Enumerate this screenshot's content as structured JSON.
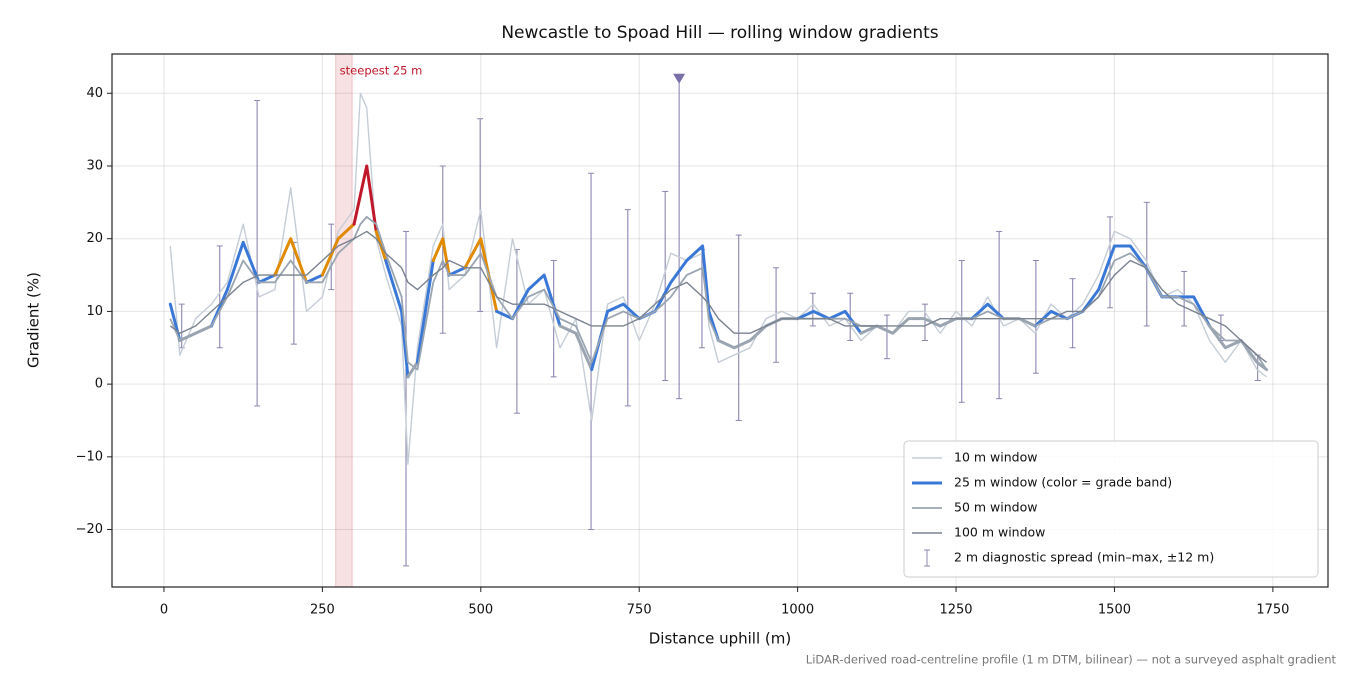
{
  "chart_data": {
    "type": "line",
    "title": "Newcastle to Spoad Hill — rolling window gradients",
    "xlabel": "Distance uphill (m)",
    "ylabel": "Gradient (%)",
    "footnote": "LiDAR-derived road-centreline profile (1 m DTM, bilinear) — not a surveyed asphalt gradient",
    "xlim": [
      -82,
      1837
    ],
    "ylim": [
      -27.9,
      45.4
    ],
    "xticks": [
      0,
      250,
      500,
      750,
      1000,
      1250,
      1500,
      1750
    ],
    "yticks": [
      {
        "value": -20,
        "label": "−20"
      },
      {
        "value": -10,
        "label": "−10"
      },
      0,
      10,
      20,
      30,
      40
    ],
    "grid": true,
    "legend": "lower right",
    "x": [
      10,
      25,
      50,
      75,
      100,
      125,
      150,
      175,
      200,
      225,
      250,
      275,
      300,
      310,
      320,
      335,
      350,
      375,
      385,
      400,
      425,
      440,
      450,
      475,
      500,
      525,
      550,
      575,
      600,
      625,
      650,
      675,
      700,
      725,
      750,
      775,
      800,
      825,
      850,
      860,
      875,
      900,
      925,
      950,
      975,
      1000,
      1025,
      1050,
      1075,
      1100,
      1125,
      1150,
      1175,
      1200,
      1225,
      1250,
      1275,
      1300,
      1325,
      1350,
      1375,
      1400,
      1425,
      1450,
      1475,
      1500,
      1525,
      1550,
      1575,
      1600,
      1625,
      1650,
      1675,
      1700,
      1725,
      1740
    ],
    "grade_bands": [
      {
        "min": -100,
        "max": 10,
        "color": "#9aa5b1"
      },
      {
        "min": 10,
        "max": 20,
        "color": "#3a78d8"
      },
      {
        "min": 20,
        "max": 25,
        "color": "#e08a00"
      },
      {
        "min": 25,
        "max": 100,
        "color": "#c0182a"
      }
    ],
    "series": [
      {
        "name": "10 m window",
        "color": "#c5cdd6",
        "values": [
          19,
          4,
          9,
          11,
          14,
          22,
          12,
          13,
          27,
          10,
          12,
          21,
          24,
          40,
          38,
          20,
          15,
          8,
          -11,
          5,
          19,
          22,
          13,
          15,
          24,
          5,
          20,
          11,
          13,
          5,
          9,
          -5,
          11,
          12,
          6,
          11,
          18,
          17,
          18,
          8,
          3,
          4,
          5,
          9,
          10,
          9,
          11,
          8,
          9,
          6,
          8,
          7,
          10,
          10,
          7,
          10,
          8,
          12,
          8,
          9,
          7,
          11,
          9,
          11,
          15,
          21,
          20,
          17,
          12,
          13,
          11,
          6,
          3,
          6,
          2,
          1
        ]
      },
      {
        "name": "25 m window (color = grade band)",
        "color": "#3a78d8",
        "banded": true,
        "values": [
          11,
          6,
          7,
          8,
          13,
          19.5,
          14,
          15,
          20,
          14,
          15,
          20,
          22,
          26,
          30,
          21,
          17,
          10,
          1,
          3,
          17,
          20,
          15,
          16,
          20,
          10,
          9,
          13,
          15,
          8,
          7,
          2,
          10,
          11,
          9,
          10,
          14,
          17,
          19,
          10,
          6,
          5,
          6,
          8,
          9,
          9,
          10,
          9,
          10,
          7,
          8,
          7,
          9,
          9,
          8,
          9,
          9,
          11,
          9,
          9,
          8,
          10,
          9,
          10,
          13,
          19,
          19,
          16,
          12,
          12,
          12,
          8,
          5,
          6,
          3,
          2
        ]
      },
      {
        "name": "50 m window",
        "color": "#9aa5b1",
        "values": [
          9,
          6,
          7,
          8,
          12,
          17,
          14,
          14,
          17,
          14,
          14,
          18,
          20,
          22,
          23,
          22,
          18,
          12,
          3,
          2,
          14,
          17,
          15,
          15,
          18,
          12,
          9,
          12,
          13,
          9,
          8,
          3,
          9,
          10,
          9,
          10,
          12,
          15,
          16,
          9,
          6,
          5,
          6,
          8,
          9,
          9,
          9,
          9,
          9,
          8,
          8,
          7,
          9,
          9,
          8,
          9,
          9,
          10,
          9,
          9,
          8,
          9,
          9,
          10,
          12,
          17,
          18,
          16,
          12,
          12,
          11,
          8,
          6,
          6,
          4,
          2
        ]
      },
      {
        "name": "100 m window",
        "color": "#7b8390",
        "values": [
          8,
          7,
          8,
          10,
          12,
          14,
          15,
          15,
          15,
          15,
          17,
          19,
          20,
          20.5,
          21,
          20,
          18,
          16,
          14,
          13,
          15,
          16,
          17,
          16,
          16,
          12,
          11,
          11,
          11,
          10,
          9,
          8,
          8,
          8,
          9,
          11,
          13,
          14,
          12,
          11,
          9,
          7,
          7,
          8,
          9,
          9,
          9,
          9,
          8,
          8,
          8,
          8,
          8,
          8,
          9,
          9,
          9,
          9,
          9,
          9,
          9,
          9,
          10,
          10,
          12,
          15,
          17,
          16,
          13,
          11,
          10,
          9,
          8,
          6,
          4,
          3
        ]
      }
    ],
    "errorbars": {
      "name": "2 m diagnostic spread (min–max, ±12 m)",
      "color": "#8c86b0",
      "x": [
        28,
        88,
        147,
        205,
        264,
        382,
        440,
        499,
        557,
        615,
        674,
        732,
        791,
        813,
        849,
        907,
        966,
        1024,
        1083,
        1141,
        1201,
        1259,
        1318,
        1376,
        1434,
        1493,
        1551,
        1610,
        1668,
        1726
      ],
      "low": [
        5,
        5,
        -3,
        5.5,
        13,
        -25,
        7,
        10,
        -4,
        1,
        -20,
        -3,
        0.5,
        -2,
        5,
        -5,
        3,
        8,
        6,
        3.5,
        6,
        -2.5,
        -2,
        1.5,
        5,
        10.5,
        8,
        8,
        6,
        0.5
      ],
      "high": [
        11,
        19,
        39,
        19.5,
        22,
        21,
        30,
        36.5,
        18.5,
        17,
        29,
        24,
        26.5,
        42,
        18.5,
        20.5,
        16,
        12.5,
        12.5,
        9.5,
        11,
        17,
        21,
        17,
        14.5,
        23,
        25,
        15.5,
        9.5,
        4
      ]
    },
    "highlight": {
      "x": [
        271,
        297
      ],
      "label": "steepest 25 m",
      "color": "#c0182a"
    },
    "marker": {
      "x": 813,
      "y": 42,
      "color": "#7a6fa8"
    }
  }
}
